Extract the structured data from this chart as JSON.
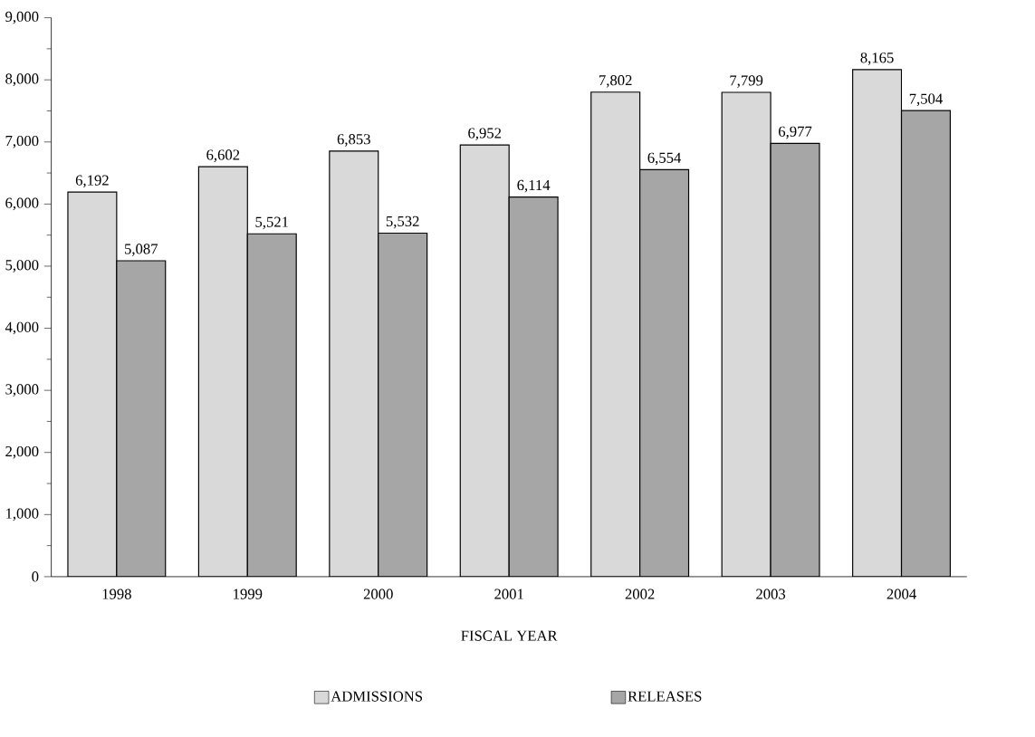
{
  "chart_data": {
    "type": "bar",
    "xlabel": "FISCAL YEAR",
    "categories": [
      "1998",
      "1999",
      "2000",
      "2001",
      "2002",
      "2003",
      "2004"
    ],
    "series": [
      {
        "name": "ADMISSIONS",
        "color": "#d9d9d9",
        "values": [
          6192,
          6602,
          6853,
          6952,
          7802,
          7799,
          8165
        ],
        "value_labels": [
          "6,192",
          "6,602",
          "6,853",
          "6,952",
          "7,802",
          "7,799",
          "8,165"
        ]
      },
      {
        "name": "RELEASES",
        "color": "#a6a6a6",
        "values": [
          5087,
          5521,
          5532,
          6114,
          6554,
          6977,
          7504
        ],
        "value_labels": [
          "5,087",
          "5,521",
          "5,532",
          "6,114",
          "6,554",
          "6,977",
          "7,504"
        ]
      }
    ],
    "ylim": [
      0,
      9000
    ],
    "yticks": [
      {
        "value": 0,
        "label": "0"
      },
      {
        "value": 1000,
        "label": "1,000"
      },
      {
        "value": 2000,
        "label": "2,000"
      },
      {
        "value": 3000,
        "label": "3,000"
      },
      {
        "value": 4000,
        "label": "4,000"
      },
      {
        "value": 5000,
        "label": "5,000"
      },
      {
        "value": 6000,
        "label": "6,000"
      },
      {
        "value": 7000,
        "label": "7,000"
      },
      {
        "value": 8000,
        "label": "8,000"
      },
      {
        "value": 9000,
        "label": "9,000"
      }
    ],
    "grid": false,
    "legend": "bottom"
  }
}
